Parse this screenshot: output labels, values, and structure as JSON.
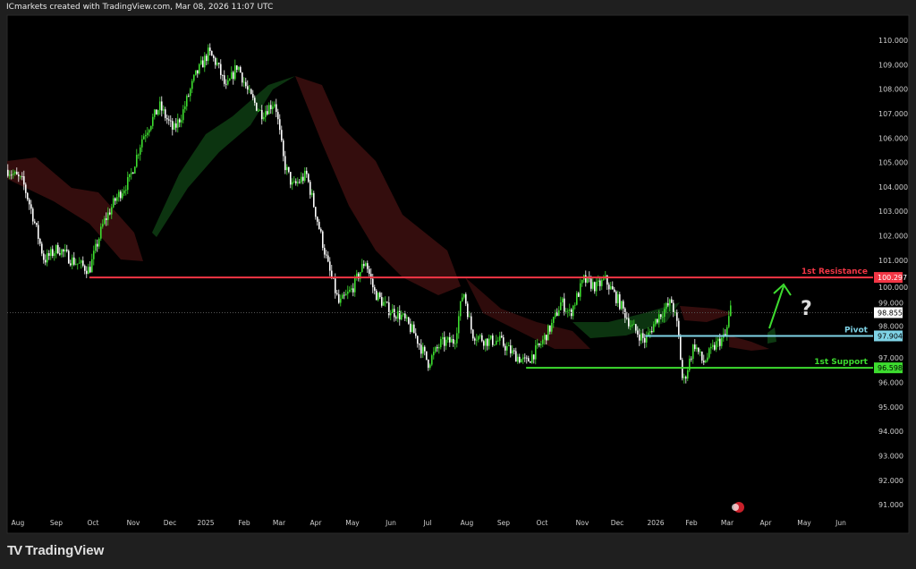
{
  "header": {
    "text": "ICmarkets created with TradingView.com, Mar 08, 2026 11:07 UTC"
  },
  "logo": {
    "text": "TradingView"
  },
  "colors": {
    "background": "#000000",
    "up": "#3ddc2f",
    "down": "#ffffff",
    "resistance": "#f23645",
    "pivot": "#7fd3e6",
    "support": "#3ddc2f",
    "cloud_bull": "#0d3a12",
    "cloud_bear": "#3a0e0e",
    "arrow": "#3ddc2f"
  },
  "chart_data": {
    "type": "candlestick",
    "title": "",
    "ylim": [
      90.5,
      110.8
    ],
    "y_ticks": [
      "91.000",
      "92.000",
      "93.000",
      "94.000",
      "95.000",
      "96.000",
      "97.000",
      "98.000",
      "99.000",
      "100.000",
      "101.000",
      "102.000",
      "103.000",
      "104.000",
      "105.000",
      "106.000",
      "107.000",
      "108.000",
      "109.000",
      "110.000"
    ],
    "x_ticks": [
      "Aug",
      "Sep",
      "Oct",
      "Nov",
      "Dec",
      "2025",
      "Feb",
      "Mar",
      "Apr",
      "May",
      "Jun",
      "Jul",
      "Aug",
      "Sep",
      "Oct",
      "Nov",
      "Dec",
      "2026",
      "Feb",
      "Mar",
      "Apr",
      "May",
      "Jun"
    ],
    "price_path": [
      [
        "2024-07-24",
        104.7
      ],
      [
        "2024-08-05",
        104.2
      ],
      [
        "2024-08-12",
        103.0
      ],
      [
        "2024-08-22",
        101.0
      ],
      [
        "2024-09-02",
        101.5
      ],
      [
        "2024-09-13",
        101.0
      ],
      [
        "2024-09-27",
        100.6
      ],
      [
        "2024-10-08",
        102.5
      ],
      [
        "2024-10-18",
        103.5
      ],
      [
        "2024-10-29",
        104.3
      ],
      [
        "2024-11-08",
        106.0
      ],
      [
        "2024-11-22",
        107.3
      ],
      [
        "2024-12-03",
        106.3
      ],
      [
        "2024-12-10",
        107.0
      ],
      [
        "2024-12-20",
        108.5
      ],
      [
        "2024-12-31",
        109.5
      ],
      [
        "2025-01-07",
        109.0
      ],
      [
        "2025-01-14",
        108.0
      ],
      [
        "2025-01-23",
        109.0
      ],
      [
        "2025-02-01",
        107.8
      ],
      [
        "2025-02-11",
        107.0
      ],
      [
        "2025-02-22",
        107.5
      ],
      [
        "2025-03-01",
        105.0
      ],
      [
        "2025-03-08",
        104.0
      ],
      [
        "2025-03-19",
        104.5
      ],
      [
        "2025-03-26",
        103.0
      ],
      [
        "2025-04-05",
        100.8
      ],
      [
        "2025-04-14",
        99.2
      ],
      [
        "2025-04-24",
        99.8
      ],
      [
        "2025-05-05",
        101.0
      ],
      [
        "2025-05-12",
        99.7
      ],
      [
        "2025-05-23",
        99.0
      ],
      [
        "2025-06-03",
        98.7
      ],
      [
        "2025-06-13",
        98.0
      ],
      [
        "2025-06-24",
        96.8
      ],
      [
        "2025-07-04",
        97.6
      ],
      [
        "2025-07-15",
        97.7
      ],
      [
        "2025-07-22",
        99.8
      ],
      [
        "2025-07-29",
        98.0
      ],
      [
        "2025-08-09",
        97.7
      ],
      [
        "2025-08-20",
        97.7
      ],
      [
        "2025-08-30",
        97.2
      ],
      [
        "2025-09-10",
        96.8
      ],
      [
        "2025-09-21",
        97.5
      ],
      [
        "2025-10-01",
        98.4
      ],
      [
        "2025-10-08",
        99.3
      ],
      [
        "2025-10-15",
        98.8
      ],
      [
        "2025-10-26",
        100.2
      ],
      [
        "2025-11-05",
        99.9
      ],
      [
        "2025-11-12",
        100.2
      ],
      [
        "2025-11-23",
        99.3
      ],
      [
        "2025-12-03",
        98.3
      ],
      [
        "2025-12-14",
        97.7
      ],
      [
        "2025-12-24",
        98.7
      ],
      [
        "2026-01-04",
        99.3
      ],
      [
        "2026-01-09",
        98.2
      ],
      [
        "2026-01-13",
        95.9
      ],
      [
        "2026-01-22",
        97.6
      ],
      [
        "2026-01-29",
        96.8
      ],
      [
        "2026-02-09",
        97.6
      ],
      [
        "2026-02-16",
        97.9
      ],
      [
        "2026-02-21",
        99.3
      ]
    ],
    "last_price": {
      "value": 98.855,
      "label": "98.855"
    },
    "levels": [
      {
        "name": "1st Resistance",
        "value": 100.297,
        "label": "100.297",
        "start": "2024-09-27",
        "color": "#f23645"
      },
      {
        "name": "Pivot",
        "value": 97.904,
        "label": "97.904",
        "start": "2025-12-14",
        "color": "#7fd3e6"
      },
      {
        "name": "1st Support",
        "value": 96.598,
        "label": "96.598",
        "start": "2025-09-10",
        "color": "#3ddc2f"
      }
    ],
    "annotations": {
      "question": "?",
      "arrow": "up"
    }
  }
}
